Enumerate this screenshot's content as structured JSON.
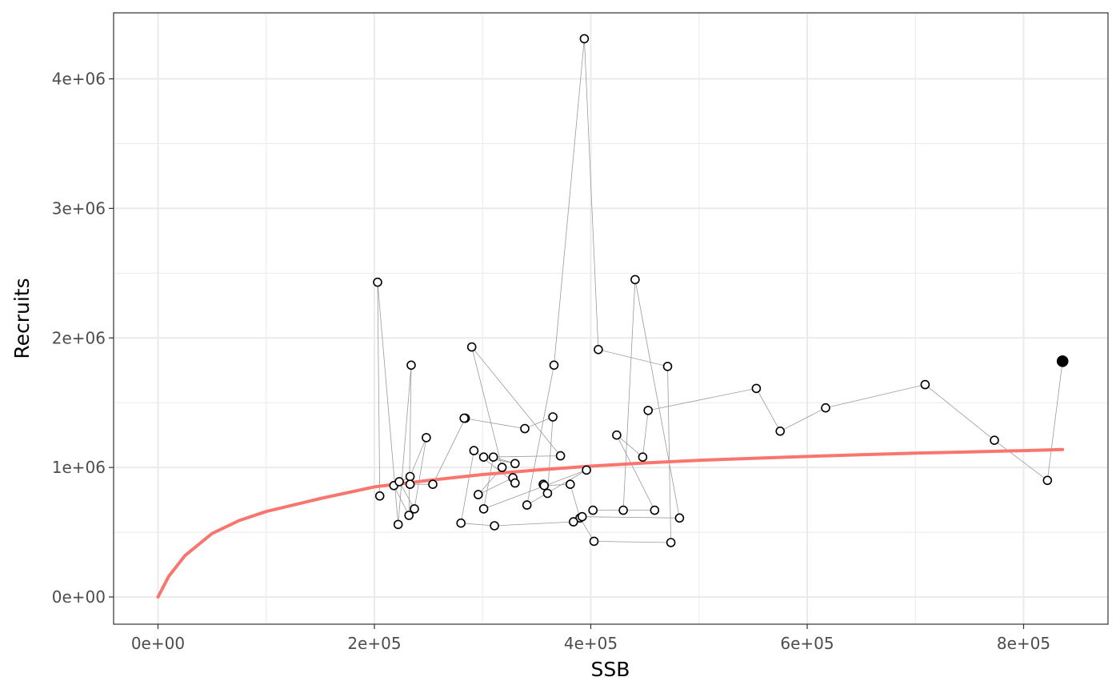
{
  "chart_data": {
    "type": "scatter",
    "title": "",
    "xlabel": "SSB",
    "ylabel": "Recruits",
    "xlim": [
      -41000,
      878000
    ],
    "ylim": [
      -210000,
      4510000
    ],
    "grid": true,
    "x_ticks": [
      0,
      200000,
      400000,
      600000,
      800000
    ],
    "x_tick_labels": [
      "0e+00",
      "2e+05",
      "4e+05",
      "6e+05",
      "8e+05"
    ],
    "y_ticks": [
      0,
      1000000,
      2000000,
      3000000,
      4000000
    ],
    "y_tick_labels": [
      "0e+00",
      "1e+06",
      "2e+06",
      "3e+06",
      "4e+06"
    ],
    "colors": {
      "fit_line": "#F8766D",
      "points": "#000000",
      "connector": "#9a9a9a",
      "grid": "#ebebeb",
      "panel_border": "#333333"
    },
    "series": [
      {
        "type": "path",
        "points": [
          [
            205000,
            780000
          ],
          [
            203000,
            2430000
          ],
          [
            222000,
            560000
          ],
          [
            234000,
            1790000
          ],
          [
            232000,
            630000
          ],
          [
            218000,
            860000
          ],
          [
            233000,
            930000
          ],
          [
            248000,
            1230000
          ],
          [
            237000,
            680000
          ],
          [
            223000,
            890000
          ],
          [
            233000,
            870000
          ],
          [
            254000,
            870000
          ],
          [
            284000,
            1380000
          ],
          [
            283000,
            1380000
          ],
          [
            339000,
            1300000
          ],
          [
            365000,
            1390000
          ],
          [
            360000,
            800000
          ],
          [
            356000,
            870000
          ],
          [
            357000,
            860000
          ],
          [
            381000,
            870000
          ],
          [
            390000,
            610000
          ],
          [
            403000,
            430000
          ],
          [
            474000,
            420000
          ],
          [
            471000,
            1780000
          ],
          [
            407000,
            1910000
          ],
          [
            394000,
            4310000
          ],
          [
            366000,
            1790000
          ],
          [
            341000,
            710000
          ],
          [
            396000,
            980000
          ],
          [
            301000,
            680000
          ],
          [
            310000,
            1080000
          ],
          [
            330000,
            1030000
          ],
          [
            301000,
            1080000
          ],
          [
            372000,
            1090000
          ],
          [
            290000,
            1930000
          ],
          [
            318000,
            1000000
          ],
          [
            296000,
            790000
          ],
          [
            328000,
            920000
          ],
          [
            330000,
            880000
          ],
          [
            292000,
            1130000
          ],
          [
            280000,
            570000
          ],
          [
            311000,
            550000
          ],
          [
            384000,
            580000
          ],
          [
            392000,
            620000
          ],
          [
            482000,
            610000
          ],
          [
            441000,
            2450000
          ],
          [
            430000,
            670000
          ],
          [
            402000,
            670000
          ],
          [
            459000,
            670000
          ],
          [
            424000,
            1250000
          ],
          [
            448000,
            1080000
          ],
          [
            453000,
            1440000
          ],
          [
            553000,
            1610000
          ],
          [
            575000,
            1280000
          ],
          [
            617000,
            1460000
          ],
          [
            709000,
            1640000
          ],
          [
            773000,
            1210000
          ],
          [
            822000,
            900000
          ],
          [
            836000,
            1820000
          ]
        ]
      },
      {
        "type": "line",
        "points": [
          [
            0,
            0
          ],
          [
            10000,
            160000
          ],
          [
            25000,
            320000
          ],
          [
            50000,
            490000
          ],
          [
            75000,
            590000
          ],
          [
            100000,
            660000
          ],
          [
            150000,
            760000
          ],
          [
            200000,
            850000
          ],
          [
            250000,
            900000
          ],
          [
            300000,
            945000
          ],
          [
            350000,
            980000
          ],
          [
            400000,
            1010000
          ],
          [
            450000,
            1035000
          ],
          [
            500000,
            1055000
          ],
          [
            550000,
            1070000
          ],
          [
            600000,
            1085000
          ],
          [
            650000,
            1098000
          ],
          [
            700000,
            1110000
          ],
          [
            750000,
            1120000
          ],
          [
            800000,
            1130000
          ],
          [
            836000,
            1138000
          ]
        ]
      }
    ],
    "highlight_point": [
      836000,
      1820000
    ]
  }
}
